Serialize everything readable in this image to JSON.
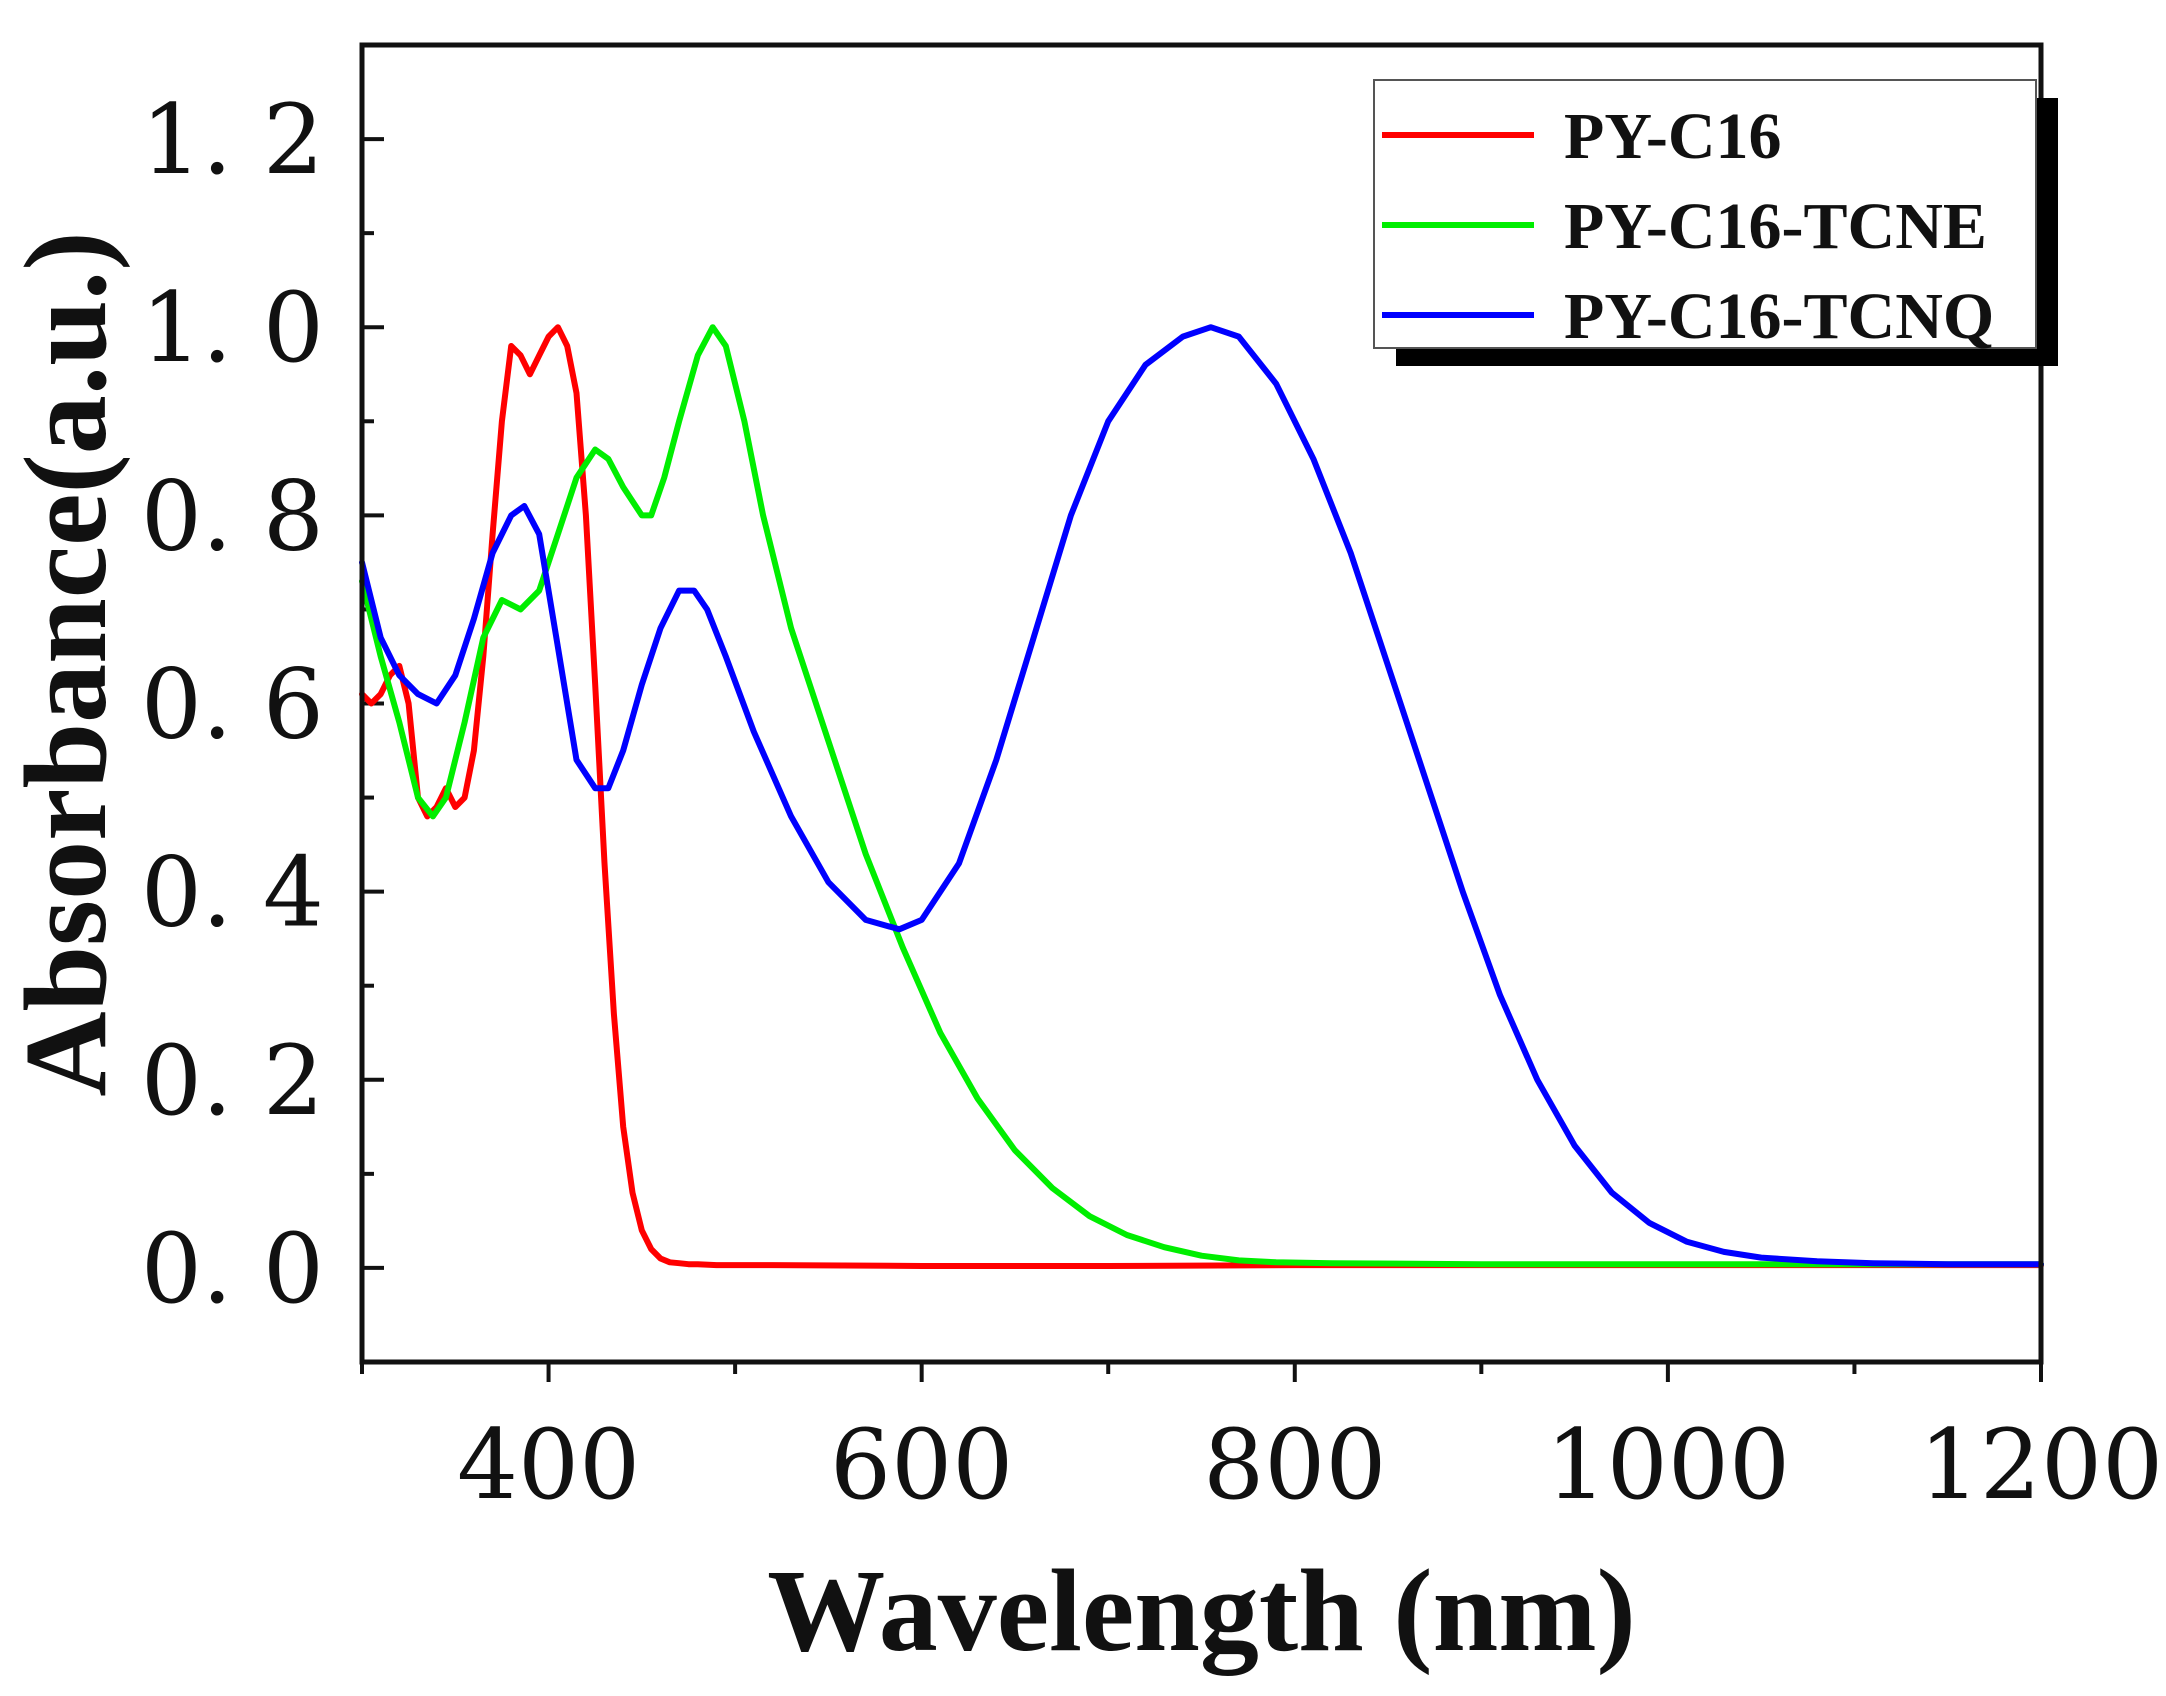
{
  "chart_data": {
    "type": "line",
    "title": "",
    "xlabel": "Wavelength (nm)",
    "ylabel": "Absorbance(a.u.)",
    "xlim": [
      300,
      1200
    ],
    "ylim": [
      -0.1,
      1.3
    ],
    "xticks": [
      400,
      600,
      800,
      1000,
      1200
    ],
    "xtick_labels": [
      "400",
      "600",
      "800",
      "1000",
      "1200"
    ],
    "yticks": [
      0.0,
      0.2,
      0.4,
      0.6,
      0.8,
      1.0,
      1.2
    ],
    "ytick_labels": [
      "0. 0",
      "0. 2",
      "0. 4",
      "0. 6",
      "0. 8",
      "1. 0",
      "1. 2"
    ],
    "legend_position": "top-right",
    "series": [
      {
        "name": "PY-C16",
        "color": "#ff0000",
        "x": [
          300,
          305,
          310,
          315,
          320,
          325,
          330,
          335,
          340,
          345,
          350,
          355,
          360,
          365,
          370,
          375,
          380,
          385,
          390,
          395,
          400,
          405,
          410,
          415,
          420,
          425,
          430,
          435,
          440,
          445,
          450,
          455,
          460,
          465,
          470,
          475,
          480,
          490,
          500,
          520,
          600,
          700,
          800,
          900,
          1000,
          1100,
          1200
        ],
        "values": [
          0.61,
          0.6,
          0.61,
          0.63,
          0.64,
          0.6,
          0.5,
          0.48,
          0.49,
          0.51,
          0.49,
          0.5,
          0.55,
          0.65,
          0.78,
          0.9,
          0.98,
          0.97,
          0.95,
          0.97,
          0.99,
          1.0,
          0.98,
          0.93,
          0.8,
          0.62,
          0.43,
          0.27,
          0.15,
          0.08,
          0.04,
          0.02,
          0.01,
          0.006,
          0.005,
          0.004,
          0.004,
          0.003,
          0.003,
          0.003,
          0.002,
          0.002,
          0.003,
          0.003,
          0.003,
          0.003,
          0.003
        ]
      },
      {
        "name": "PY-C16-TCNE",
        "color": "#00ee00",
        "x": [
          300,
          310,
          320,
          330,
          338,
          345,
          355,
          365,
          375,
          385,
          395,
          405,
          415,
          425,
          432,
          440,
          450,
          455,
          462,
          470,
          480,
          488,
          495,
          505,
          515,
          530,
          550,
          570,
          590,
          610,
          630,
          650,
          670,
          690,
          710,
          730,
          750,
          770,
          790,
          820,
          900,
          1000,
          1100,
          1200
        ],
        "values": [
          0.73,
          0.65,
          0.58,
          0.5,
          0.48,
          0.5,
          0.58,
          0.67,
          0.71,
          0.7,
          0.72,
          0.78,
          0.84,
          0.87,
          0.86,
          0.83,
          0.8,
          0.8,
          0.84,
          0.9,
          0.97,
          1.0,
          0.98,
          0.9,
          0.8,
          0.68,
          0.56,
          0.44,
          0.34,
          0.25,
          0.18,
          0.125,
          0.085,
          0.055,
          0.035,
          0.022,
          0.013,
          0.008,
          0.006,
          0.005,
          0.004,
          0.004,
          0.004,
          0.004
        ]
      },
      {
        "name": "PY-C16-TCNQ",
        "color": "#0000ff",
        "x": [
          300,
          310,
          320,
          330,
          340,
          350,
          360,
          370,
          380,
          387,
          395,
          405,
          415,
          425,
          432,
          440,
          450,
          460,
          470,
          478,
          485,
          495,
          510,
          530,
          550,
          570,
          588,
          600,
          620,
          640,
          660,
          680,
          700,
          720,
          740,
          755,
          770,
          790,
          810,
          830,
          850,
          870,
          890,
          910,
          930,
          950,
          970,
          990,
          1010,
          1030,
          1050,
          1080,
          1110,
          1150,
          1200
        ],
        "values": [
          0.75,
          0.67,
          0.63,
          0.61,
          0.6,
          0.63,
          0.69,
          0.76,
          0.8,
          0.81,
          0.78,
          0.66,
          0.54,
          0.51,
          0.51,
          0.55,
          0.62,
          0.68,
          0.72,
          0.72,
          0.7,
          0.65,
          0.57,
          0.48,
          0.41,
          0.37,
          0.36,
          0.37,
          0.43,
          0.54,
          0.67,
          0.8,
          0.9,
          0.96,
          0.99,
          1.0,
          0.99,
          0.94,
          0.86,
          0.76,
          0.64,
          0.52,
          0.4,
          0.29,
          0.2,
          0.13,
          0.08,
          0.048,
          0.028,
          0.017,
          0.011,
          0.007,
          0.005,
          0.004,
          0.004
        ]
      }
    ]
  }
}
